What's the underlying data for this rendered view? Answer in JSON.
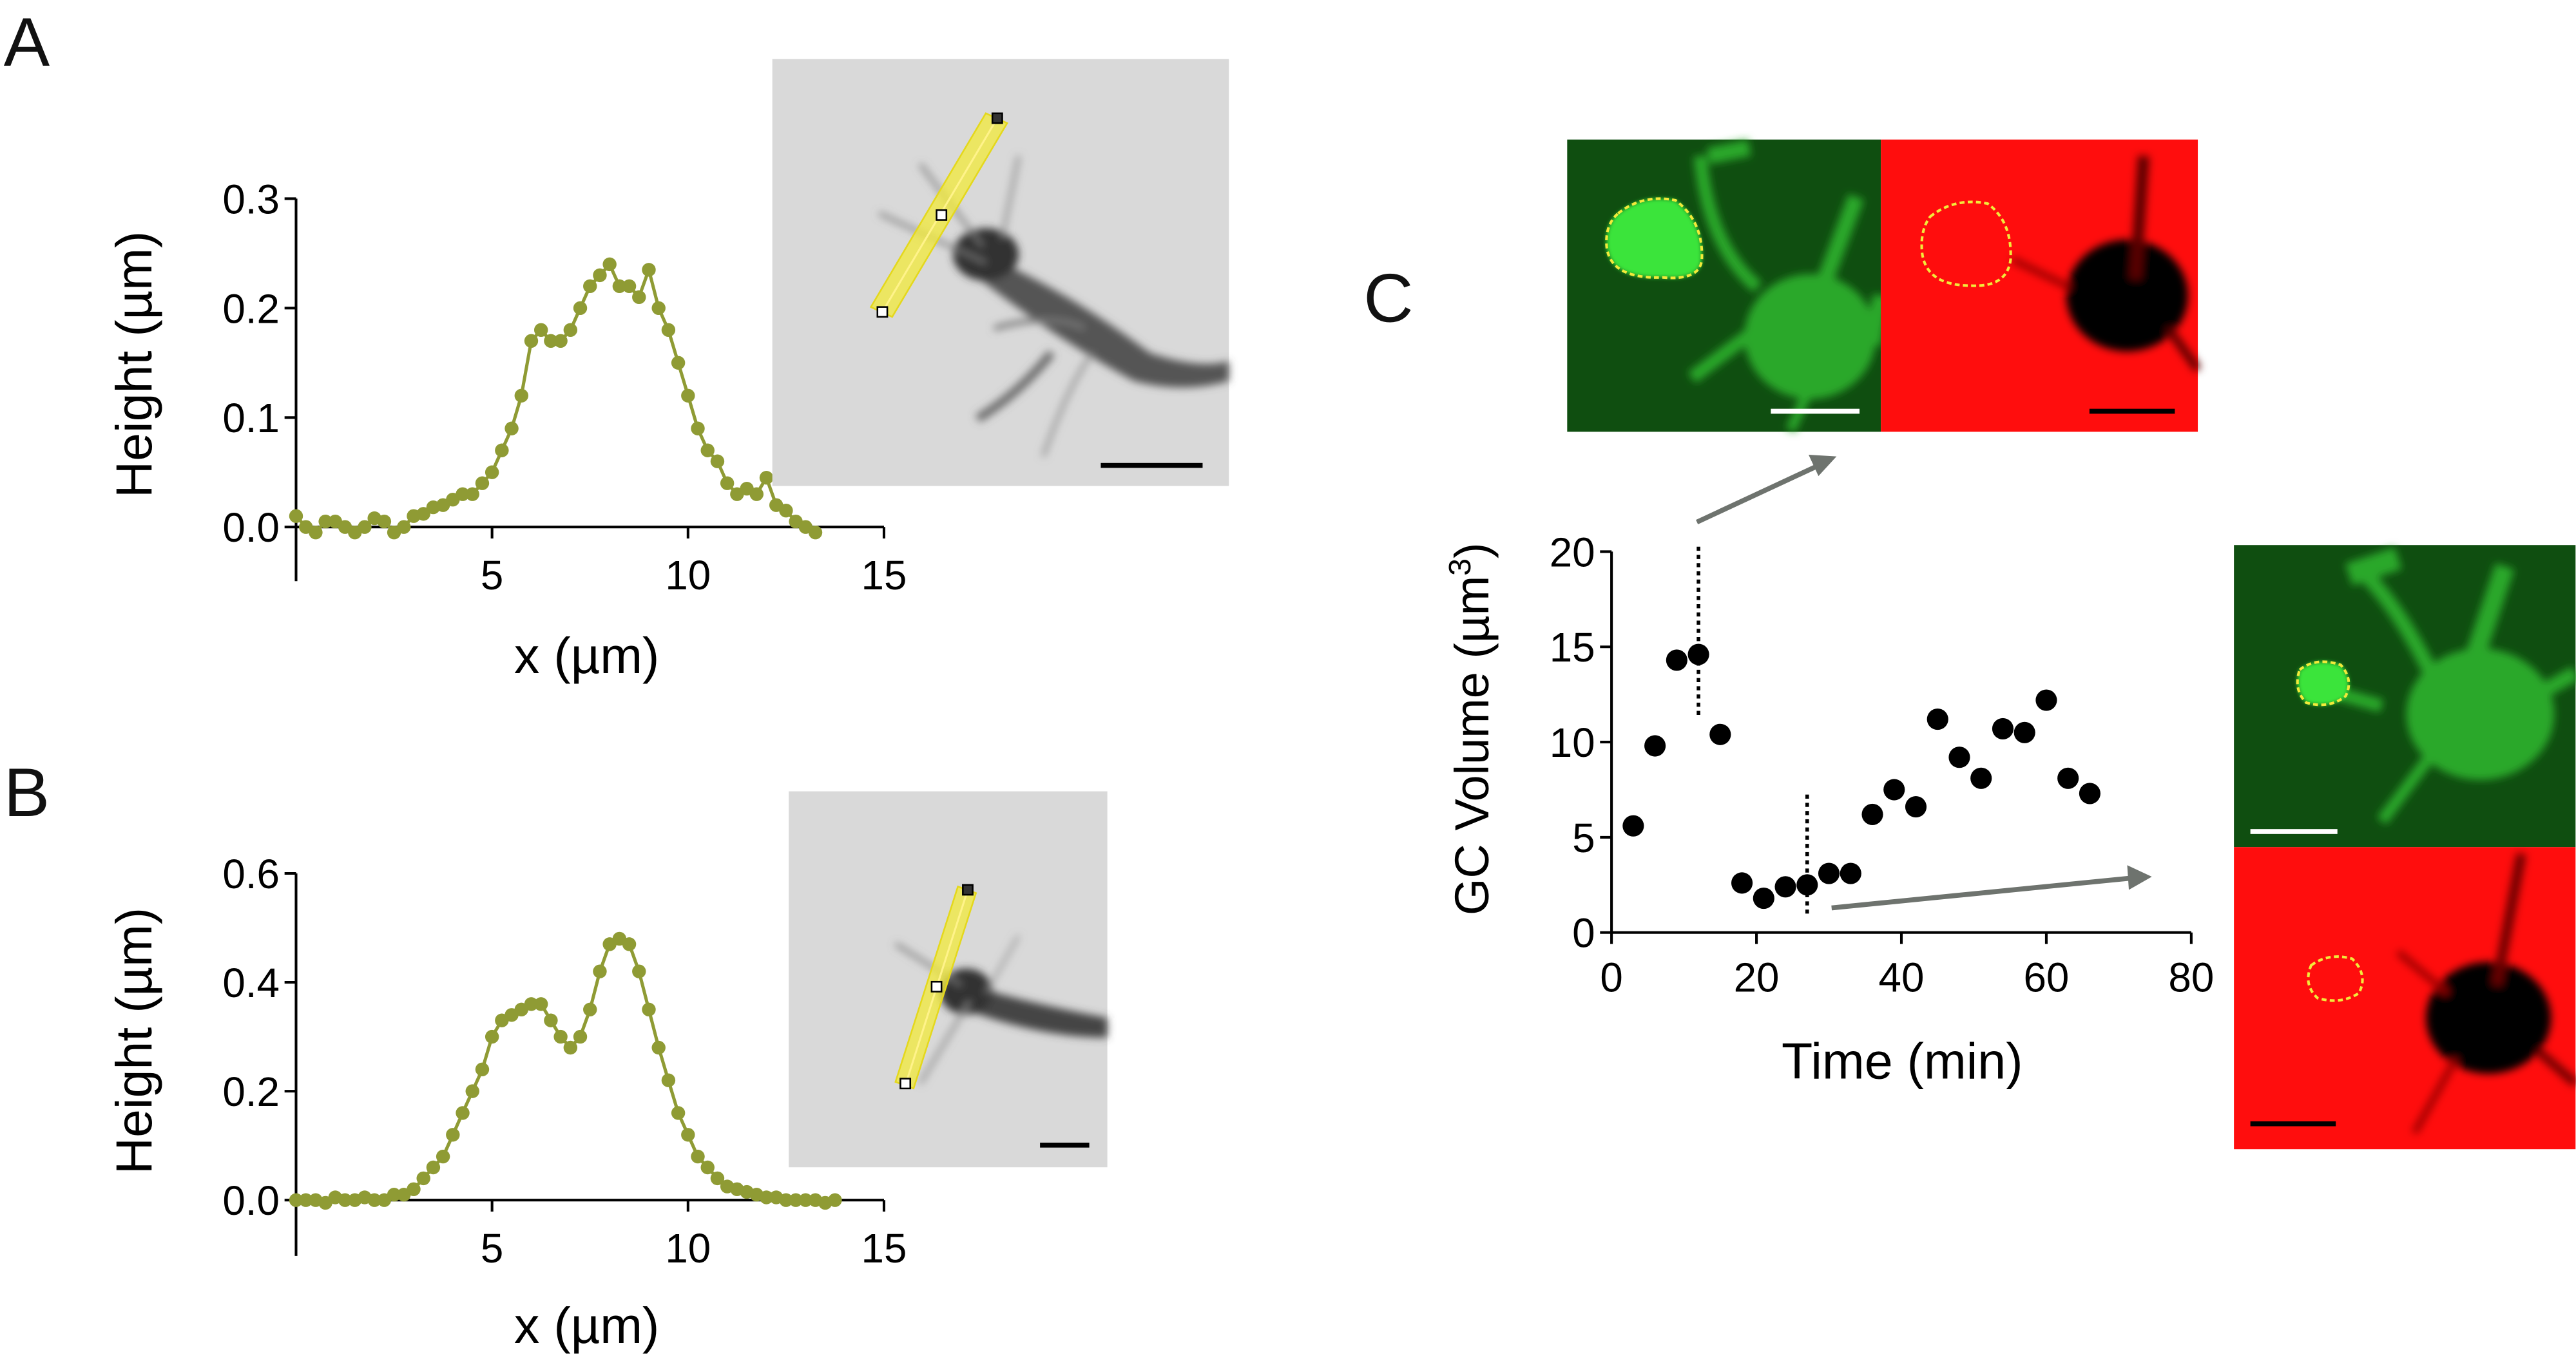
{
  "panel_labels": {
    "a": "A",
    "b": "B",
    "c": "C"
  },
  "colors": {
    "profile": "#8f9b34",
    "scatter": "#000000",
    "axis": "#000000",
    "roi": "#f2ea3a",
    "roi_outline": "#e4d81c",
    "arrow": "#6e736e",
    "green_channel": "#0f4e10",
    "red_channel": "#ff0d0d"
  },
  "chart_data": [
    {
      "id": "A",
      "type": "line",
      "xlabel": "x (µm)",
      "ylabel": "Height (µm)",
      "xlim": [
        0,
        15
      ],
      "ylim": [
        0,
        0.3
      ],
      "xticks": [
        5,
        10,
        15
      ],
      "yticks": [
        0.0,
        0.1,
        0.2,
        0.3
      ],
      "ytick_labels": [
        "0.0",
        "0.1",
        "0.2",
        "0.3"
      ],
      "series": [
        {
          "x": [
            0.0,
            0.25,
            0.5,
            0.75,
            1.0,
            1.25,
            1.5,
            1.75,
            2.0,
            2.25,
            2.5,
            2.75,
            3.0,
            3.25,
            3.5,
            3.75,
            4.0,
            4.25,
            4.5,
            4.75,
            5.0,
            5.25,
            5.5,
            5.75,
            6.0,
            6.25,
            6.5,
            6.75,
            7.0,
            7.25,
            7.5,
            7.75,
            8.0,
            8.25,
            8.5,
            8.75,
            9.0,
            9.25,
            9.5,
            9.75,
            10.0,
            10.25,
            10.5,
            10.75,
            11.0,
            11.25,
            11.5,
            11.75,
            12.0,
            12.25,
            12.5,
            12.75,
            13.0,
            13.25
          ],
          "y": [
            0.01,
            0.0,
            -0.005,
            0.005,
            0.005,
            0.0,
            -0.005,
            0.0,
            0.008,
            0.005,
            -0.005,
            0.0,
            0.01,
            0.012,
            0.018,
            0.02,
            0.025,
            0.03,
            0.03,
            0.04,
            0.05,
            0.07,
            0.09,
            0.12,
            0.17,
            0.18,
            0.17,
            0.17,
            0.18,
            0.2,
            0.22,
            0.23,
            0.24,
            0.22,
            0.22,
            0.21,
            0.235,
            0.2,
            0.18,
            0.15,
            0.12,
            0.09,
            0.07,
            0.06,
            0.04,
            0.03,
            0.035,
            0.03,
            0.045,
            0.02,
            0.015,
            0.005,
            0.0,
            -0.005
          ]
        }
      ]
    },
    {
      "id": "B",
      "type": "line",
      "xlabel": "x (µm)",
      "ylabel": "Height (µm)",
      "xlim": [
        0,
        15
      ],
      "ylim": [
        0,
        0.6
      ],
      "xticks": [
        5,
        10,
        15
      ],
      "yticks": [
        0.0,
        0.2,
        0.4,
        0.6
      ],
      "ytick_labels": [
        "0.0",
        "0.2",
        "0.4",
        "0.6"
      ],
      "series": [
        {
          "x": [
            0.0,
            0.25,
            0.5,
            0.75,
            1.0,
            1.25,
            1.5,
            1.75,
            2.0,
            2.25,
            2.5,
            2.75,
            3.0,
            3.25,
            3.5,
            3.75,
            4.0,
            4.25,
            4.5,
            4.75,
            5.0,
            5.25,
            5.5,
            5.75,
            6.0,
            6.25,
            6.5,
            6.75,
            7.0,
            7.25,
            7.5,
            7.75,
            8.0,
            8.25,
            8.5,
            8.75,
            9.0,
            9.25,
            9.5,
            9.75,
            10.0,
            10.25,
            10.5,
            10.75,
            11.0,
            11.25,
            11.5,
            11.75,
            12.0,
            12.25,
            12.5,
            12.75,
            13.0,
            13.25,
            13.5,
            13.75
          ],
          "y": [
            0.0,
            0.0,
            0.0,
            -0.005,
            0.005,
            0.0,
            0.0,
            0.005,
            0.0,
            0.0,
            0.01,
            0.01,
            0.02,
            0.04,
            0.06,
            0.08,
            0.12,
            0.16,
            0.2,
            0.24,
            0.3,
            0.33,
            0.34,
            0.35,
            0.36,
            0.36,
            0.33,
            0.3,
            0.28,
            0.3,
            0.35,
            0.42,
            0.47,
            0.48,
            0.47,
            0.42,
            0.35,
            0.28,
            0.22,
            0.16,
            0.12,
            0.08,
            0.06,
            0.04,
            0.025,
            0.02,
            0.015,
            0.01,
            0.005,
            0.005,
            0.0,
            0.0,
            0.0,
            0.0,
            -0.005,
            0.0
          ]
        }
      ]
    },
    {
      "id": "C",
      "type": "scatter",
      "xlabel": "Time (min)",
      "ylabel_main": "GC Volume (µm",
      "ylabel_sup": "3",
      "ylabel_close": ")",
      "xlim": [
        0,
        80
      ],
      "ylim": [
        0,
        20
      ],
      "xticks": [
        0,
        20,
        40,
        60,
        80
      ],
      "yticks": [
        0,
        5,
        10,
        15,
        20
      ],
      "vlines": [
        12,
        27
      ],
      "series": [
        {
          "x": [
            3,
            6,
            9,
            12,
            15,
            18,
            21,
            24,
            27,
            30,
            33,
            36,
            39,
            42,
            45,
            48,
            51,
            54,
            57,
            60,
            63,
            66
          ],
          "y": [
            5.6,
            9.8,
            14.3,
            14.6,
            10.4,
            2.6,
            1.8,
            2.4,
            2.5,
            3.1,
            3.1,
            6.2,
            7.5,
            6.6,
            11.2,
            9.2,
            8.1,
            10.7,
            10.5,
            12.2,
            8.1,
            7.3
          ]
        }
      ]
    }
  ]
}
